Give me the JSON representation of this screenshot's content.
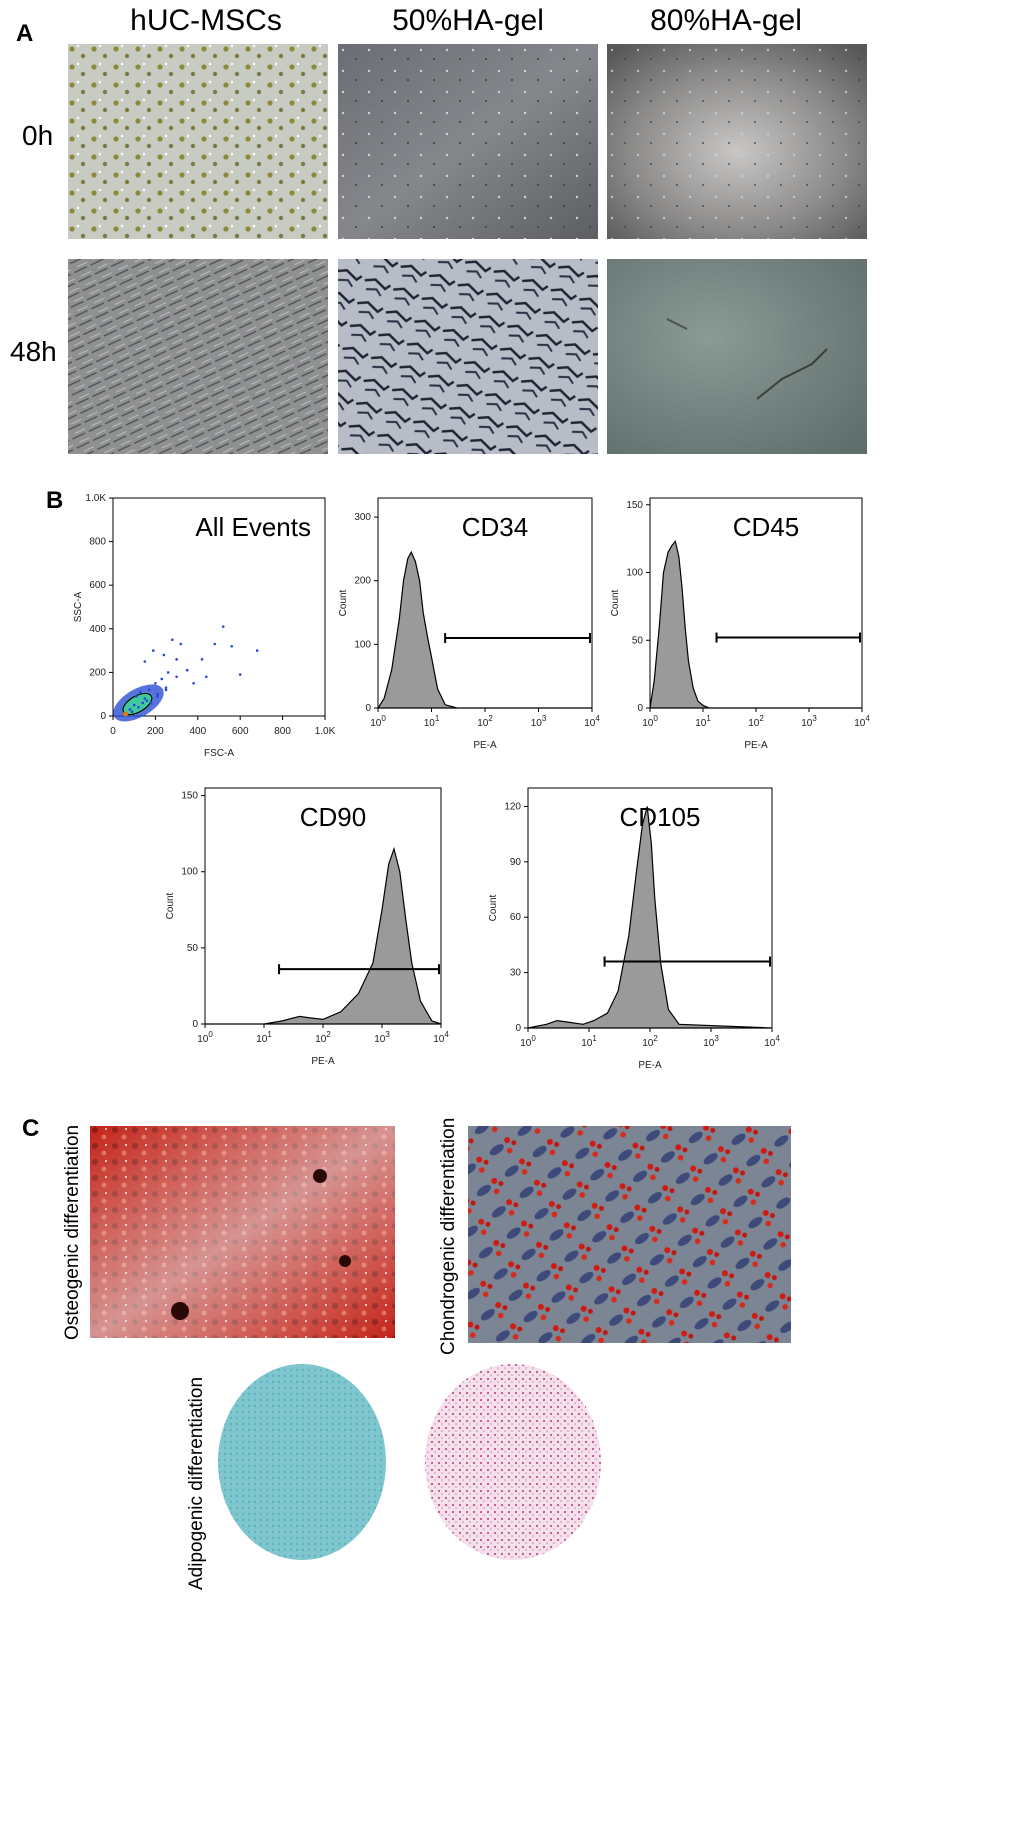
{
  "panel_a": {
    "letter": "A",
    "columns": [
      "hUC-MSCs",
      "50%HA-gel",
      "80%HA-gel"
    ],
    "rows": [
      "0h",
      "48h"
    ]
  },
  "panel_b": {
    "letter": "B"
  },
  "panel_c": {
    "letter": "C",
    "labels": {
      "osteo": "Osteogenic differentiation",
      "chondro": "Chondrogenic differentiation",
      "adipo": "Adipogenic differentiation"
    }
  },
  "chart_data": [
    {
      "type": "scatter",
      "title": "All Events",
      "xlabel": "FSC-A",
      "ylabel": "SSC-A",
      "xlim": [
        0,
        1000
      ],
      "ylim": [
        0,
        1000
      ],
      "xticks": [
        "0",
        "200",
        "400",
        "600",
        "800",
        "1.0K"
      ],
      "yticks": [
        "0",
        "200",
        "400",
        "600",
        "800",
        "1.0K"
      ],
      "x": [
        80,
        100,
        120,
        140,
        160,
        110,
        130,
        150,
        170,
        200,
        230,
        260,
        90,
        210,
        250,
        300,
        350,
        420,
        480,
        520,
        560,
        600,
        680,
        150,
        190,
        240,
        280,
        320,
        380,
        440,
        180,
        210,
        250,
        300
      ],
      "y": [
        30,
        50,
        40,
        60,
        70,
        90,
        110,
        80,
        120,
        150,
        170,
        200,
        20,
        100,
        130,
        180,
        210,
        260,
        330,
        410,
        320,
        190,
        300,
        250,
        300,
        280,
        350,
        330,
        150,
        180,
        60,
        90,
        120,
        260
      ]
    },
    {
      "type": "area",
      "title": "CD34",
      "xlabel": "PE-A",
      "ylabel": "Count",
      "log_x": true,
      "xlim": [
        1,
        10000
      ],
      "ylim": [
        0,
        330
      ],
      "xticks": [
        "10^0",
        "10^1",
        "10^2",
        "10^3",
        "10^4"
      ],
      "yticks": [
        "0",
        "100",
        "200",
        "300"
      ],
      "x": [
        1,
        1.3,
        1.8,
        2.5,
        3,
        3.6,
        4.2,
        5,
        6,
        7,
        8.5,
        10,
        13,
        18,
        30,
        100,
        1000,
        10000
      ],
      "y": [
        0,
        15,
        60,
        140,
        200,
        235,
        245,
        230,
        200,
        150,
        110,
        80,
        30,
        5,
        0,
        0,
        0,
        0
      ],
      "gate": [
        18,
        10000
      ]
    },
    {
      "type": "area",
      "title": "CD45",
      "xlabel": "PE-A",
      "ylabel": "Count",
      "log_x": true,
      "xlim": [
        1,
        10000
      ],
      "ylim": [
        0,
        155
      ],
      "xticks": [
        "10^0",
        "10^1",
        "10^2",
        "10^3",
        "10^4"
      ],
      "yticks": [
        "0",
        "50",
        "100",
        "150"
      ],
      "x": [
        1,
        1.2,
        1.5,
        1.8,
        2.2,
        2.6,
        3,
        3.5,
        4,
        4.6,
        5.3,
        6.5,
        8,
        10,
        13,
        20,
        100,
        10000
      ],
      "y": [
        0,
        20,
        60,
        100,
        115,
        120,
        123,
        112,
        90,
        60,
        35,
        15,
        5,
        2,
        0,
        0,
        0,
        0
      ],
      "gate": [
        18,
        10000
      ]
    },
    {
      "type": "area",
      "title": "CD90",
      "xlabel": "PE-A",
      "ylabel": "Count",
      "log_x": true,
      "xlim": [
        1,
        10000
      ],
      "ylim": [
        0,
        155
      ],
      "xticks": [
        "10^0",
        "10^1",
        "10^2",
        "10^3",
        "10^4"
      ],
      "yticks": [
        "0",
        "50",
        "100",
        "150"
      ],
      "x": [
        1,
        10,
        20,
        40,
        60,
        100,
        200,
        400,
        700,
        1000,
        1300,
        1600,
        2000,
        2500,
        3200,
        4500,
        7000,
        10000
      ],
      "y": [
        0,
        0,
        2,
        5,
        4,
        3,
        8,
        20,
        40,
        75,
        105,
        115,
        100,
        70,
        40,
        15,
        2,
        0
      ],
      "gate": [
        18,
        10000
      ]
    },
    {
      "type": "area",
      "title": "CD105",
      "xlabel": "PE-A",
      "ylabel": "Count",
      "log_x": true,
      "xlim": [
        1,
        10000
      ],
      "ylim": [
        0,
        130
      ],
      "xticks": [
        "10^0",
        "10^1",
        "10^2",
        "10^3",
        "10^4"
      ],
      "yticks": [
        "0",
        "30",
        "60",
        "90",
        "120"
      ],
      "x": [
        1,
        2,
        3,
        5,
        8,
        12,
        20,
        30,
        45,
        60,
        75,
        90,
        105,
        120,
        150,
        200,
        300,
        10000
      ],
      "y": [
        0,
        2,
        4,
        3,
        2,
        4,
        8,
        20,
        50,
        85,
        110,
        120,
        100,
        70,
        35,
        10,
        2,
        0
      ],
      "gate": [
        18,
        10000
      ]
    }
  ]
}
